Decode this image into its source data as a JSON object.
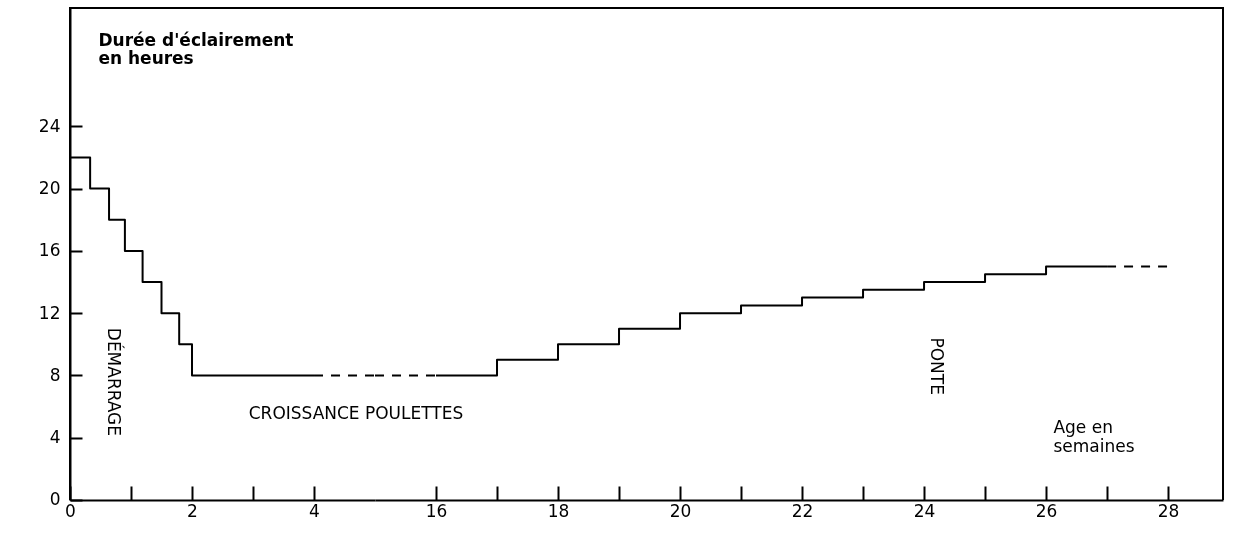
{
  "chart_data": [
    {
      "type": "step",
      "ylabel": "Durée d'éclairement en heures",
      "xlim": [
        0,
        5
      ],
      "ylim": [
        0,
        31.6
      ],
      "xticks": [
        0,
        {
          "value": 1,
          "label": null
        },
        2,
        {
          "value": 3,
          "label": null
        },
        4
      ],
      "yticks": [
        0,
        4,
        8,
        12,
        16,
        20,
        24
      ],
      "series": [
        {
          "color": "#000000",
          "line_style": "solid",
          "x": [
            0,
            0.33,
            0.64,
            0.9,
            1.19,
            1.5,
            1.79,
            2,
            4
          ],
          "values": [
            22,
            20,
            18,
            16,
            14,
            12,
            10,
            8,
            8
          ]
        },
        {
          "color": "#000000",
          "line_style": "dashed",
          "x": [
            4,
            5
          ],
          "values": [
            8,
            8
          ]
        }
      ],
      "annotations": [
        "DÉMARRAGE",
        "CROISSANCE POULETTES"
      ]
    },
    {
      "type": "step",
      "xlabel": "Age en semaines",
      "xlim": [
        15,
        28.9
      ],
      "ylim": [
        0,
        31.6
      ],
      "xticks": [
        16,
        {
          "value": 17,
          "label": null
        },
        18,
        {
          "value": 19,
          "label": null
        },
        20,
        {
          "value": 21,
          "label": null
        },
        22,
        {
          "value": 23,
          "label": null
        },
        24,
        {
          "value": 25,
          "label": null
        },
        26,
        {
          "value": 27,
          "label": null
        },
        28
      ],
      "tick_labels": "x",
      "series": [
        {
          "color": "#000000",
          "line_style": "dashed",
          "x": [
            15,
            16
          ],
          "values": [
            8,
            8
          ]
        },
        {
          "color": "#000000",
          "line_style": "solid",
          "x": [
            16,
            17,
            18,
            19,
            20,
            21,
            22,
            23,
            24,
            25,
            26,
            27
          ],
          "values": [
            8,
            9,
            10,
            11,
            12,
            12.5,
            13,
            13.5,
            14,
            14.5,
            15,
            15
          ]
        },
        {
          "color": "#000000",
          "line_style": "dashed",
          "x": [
            27,
            28
          ],
          "values": [
            15,
            15
          ]
        }
      ],
      "annotations": [
        "PONTE"
      ]
    }
  ]
}
